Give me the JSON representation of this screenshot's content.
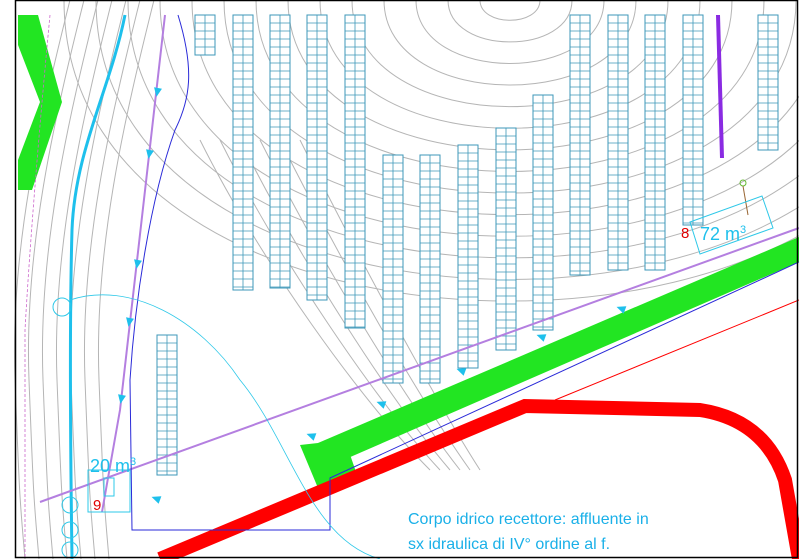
{
  "basins": [
    {
      "id": "8",
      "volume": "72 m",
      "exponent": "3"
    },
    {
      "id": "9",
      "volume": "20 m",
      "exponent": "3"
    }
  ],
  "note": {
    "lines": [
      "Corpo idrico recettore: affluente in",
      "sx idraulica di IV° ordine al f."
    ]
  }
}
